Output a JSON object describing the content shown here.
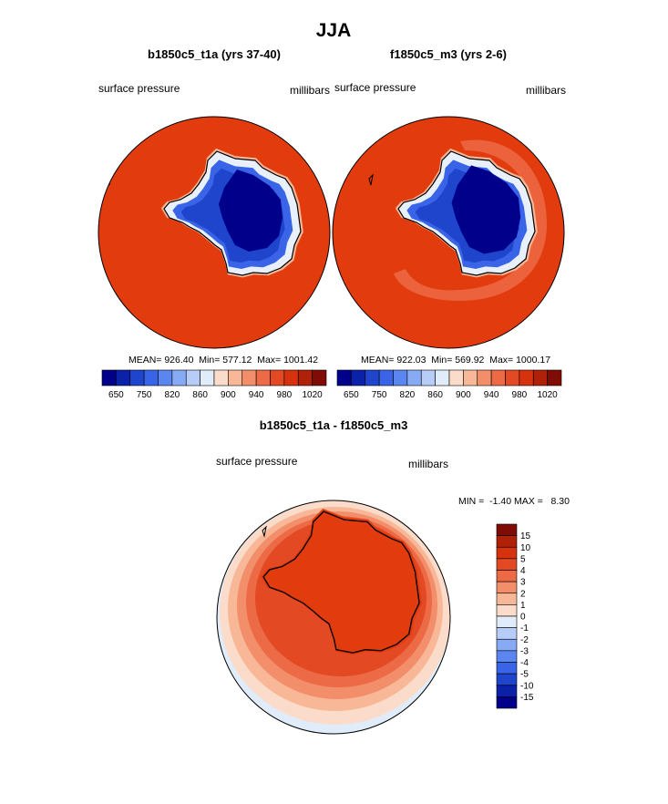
{
  "figure": {
    "title": "JJA"
  },
  "colors": {
    "map_boundary": "#000000",
    "coast": "#000000"
  },
  "chart_data": [
    {
      "type": "heatmap",
      "id": "panel-b1850c5",
      "title": "b1850c5_t1a (yrs 37-40)",
      "left_label": "surface pressure",
      "right_label": "millibars",
      "projection": "south-polar",
      "stats_text": "MEAN= 926.40  Min= 577.12  Max= 1001.42",
      "stats": {
        "mean": 926.4,
        "min": 577.12,
        "max": 1001.42
      },
      "colorbar_ticks": [
        "650",
        "750",
        "820",
        "860",
        "900",
        "940",
        "980",
        "1020"
      ],
      "colorbar_colors": [
        "#00008b",
        "#0a21a8",
        "#1e45cc",
        "#3a64e8",
        "#5b86f0",
        "#86aaf4",
        "#b8ccf8",
        "#e0ecfa",
        "#fbdccb",
        "#f8b898",
        "#f38e6b",
        "#ec6a45",
        "#e34a24",
        "#d6320d",
        "#b0210a",
        "#800d05"
      ],
      "ocean_color": "#e23b0e",
      "outer_ring": false
    },
    {
      "type": "heatmap",
      "id": "panel-f1850c5",
      "title": "f1850c5_m3 (yrs 2-6)",
      "left_label": "surface pressure",
      "right_label": "millibars",
      "projection": "south-polar",
      "stats_text": "MEAN= 922.03  Min= 569.92  Max= 1000.17",
      "stats": {
        "mean": 922.03,
        "min": 569.92,
        "max": 1000.17
      },
      "colorbar_ticks": [
        "650",
        "750",
        "820",
        "860",
        "900",
        "940",
        "980",
        "1020"
      ],
      "colorbar_colors": [
        "#00008b",
        "#0a21a8",
        "#1e45cc",
        "#3a64e8",
        "#5b86f0",
        "#86aaf4",
        "#b8ccf8",
        "#e0ecfa",
        "#fbdccb",
        "#f8b898",
        "#f38e6b",
        "#ec6a45",
        "#e34a24",
        "#d6320d",
        "#b0210a",
        "#800d05"
      ],
      "ocean_color": "#e23b0e",
      "outer_ring": true
    },
    {
      "type": "heatmap",
      "id": "panel-diff",
      "title": "b1850c5_t1a - f1850c5_m3",
      "left_label": "surface pressure",
      "right_label": "millibars",
      "projection": "south-polar",
      "stats_text": "MIN =  -1.40 MAX =   8.30",
      "stats": {
        "min": -1.4,
        "max": 8.3
      },
      "colorbar_ticks": [
        "15",
        "10",
        "5",
        "4",
        "3",
        "2",
        "1",
        "0",
        "-1",
        "-2",
        "-3",
        "-4",
        "-5",
        "-10",
        "-15"
      ],
      "colorbar_colors": [
        "#800d05",
        "#b0210a",
        "#d6320d",
        "#e34a24",
        "#ec6a45",
        "#f38e6b",
        "#f8b898",
        "#fbdccb",
        "#e0ecfa",
        "#b8ccf8",
        "#86aaf4",
        "#5b86f0",
        "#3a64e8",
        "#1e45cc",
        "#0a21a8",
        "#00008b"
      ]
    }
  ]
}
